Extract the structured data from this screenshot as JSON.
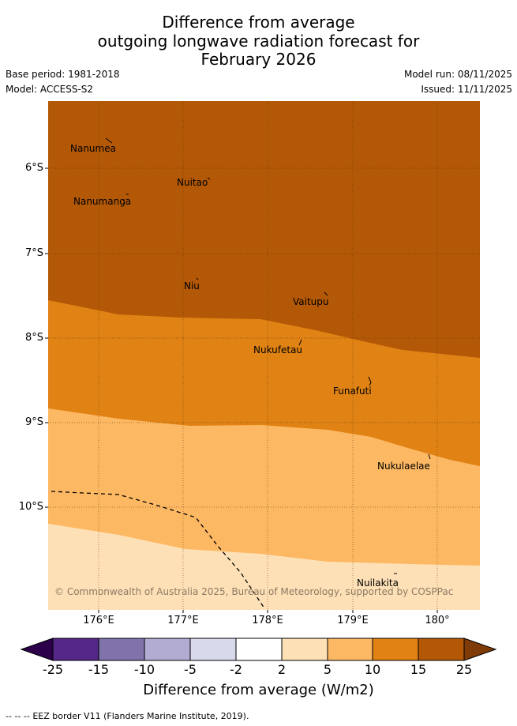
{
  "title": {
    "line1": "Difference from average",
    "line2": "outgoing longwave radiation forecast for",
    "line3": "February 2026"
  },
  "meta": {
    "base_period": "Base period: 1981-2018",
    "model": "Model: ACCESS-S2",
    "model_run": "Model run: 08/11/2025",
    "issued": "Issued: 11/11/2025"
  },
  "map": {
    "lat_labels": [
      "6°S",
      "7°S",
      "8°S",
      "9°S",
      "10°S"
    ],
    "lon_labels": [
      "176°E",
      "177°E",
      "178°E",
      "179°E",
      "180°"
    ],
    "places": [
      "Nanumea",
      "Nuitao",
      "Nanumanga",
      "Niu",
      "Vaitupu",
      "Nukufetau",
      "Funafuti",
      "Nukulaelae",
      "Nuilakita"
    ],
    "copyright": "© Commonwealth of Australia 2025, Bureau of Meteorology, supported by COSPPac",
    "zone_colors": {
      "gt15": "#b35806",
      "10to15": "#e08214",
      "5to10": "#fdb863",
      "2to5": "#fee0b6"
    }
  },
  "colorbar": {
    "ticks": [
      "-25",
      "-15",
      "-10",
      "-5",
      "-2",
      "2",
      "5",
      "10",
      "15",
      "25"
    ],
    "colors": [
      "#2d004b",
      "#542788",
      "#8073ac",
      "#b2abd2",
      "#d8daeb",
      "#ffffff",
      "#fee0b6",
      "#fdb863",
      "#e08214",
      "#b35806",
      "#7f3b08"
    ],
    "title": "Difference from average (W/m2)"
  },
  "footer": {
    "legend_symbol": "-- -- --",
    "eez_label": "EEZ border V11 (Flanders Marine Institute, 2019)."
  }
}
